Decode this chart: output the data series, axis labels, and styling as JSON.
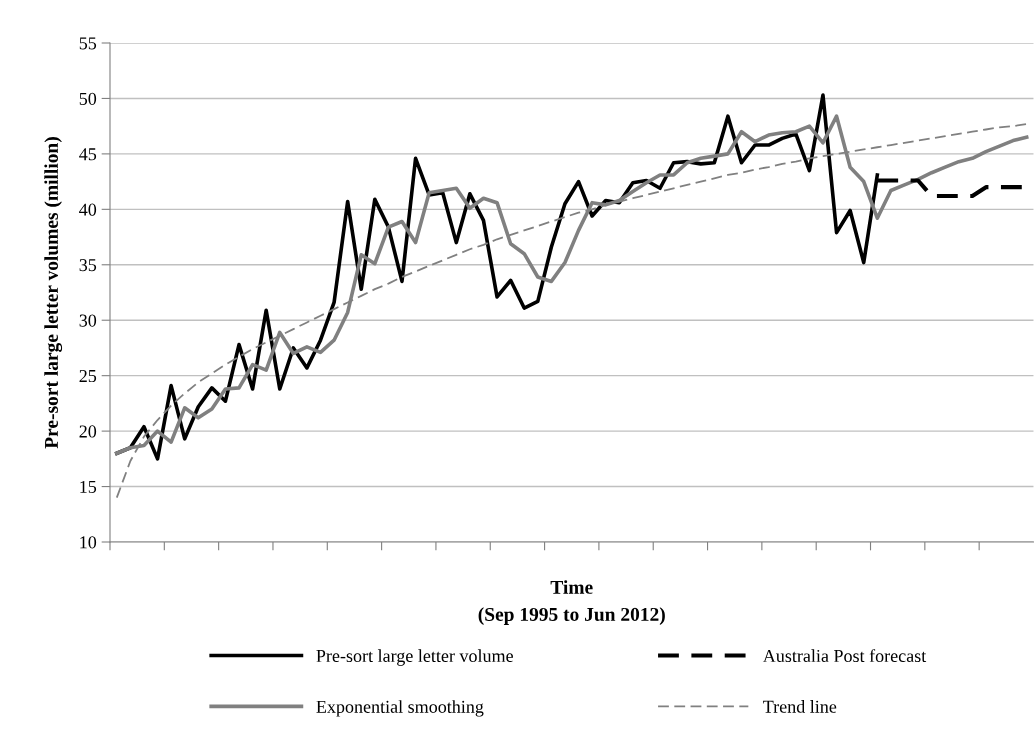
{
  "chart_data": {
    "type": "line",
    "xlabel": "Time\n(Sep 1995 to Jun 2012)",
    "ylabel": "Pre-sort large letter volumes (million)",
    "categories": [
      null,
      null,
      null,
      null,
      null,
      null,
      null,
      null,
      null,
      null,
      null,
      null,
      null,
      null,
      null,
      null,
      null,
      null,
      null,
      null,
      null,
      null,
      null,
      null,
      null,
      null,
      null,
      null,
      null,
      null,
      null,
      null,
      null,
      null,
      null,
      null,
      null,
      null,
      null,
      null,
      null,
      null,
      null,
      null,
      null,
      null,
      null,
      null,
      null,
      null,
      null,
      null,
      null,
      null,
      null,
      null,
      null,
      null,
      null,
      null,
      null,
      null,
      null,
      null,
      null,
      null,
      null,
      null
    ],
    "series": [
      {
        "name": "Pre-sort large letter volume",
        "color": "#000000",
        "line_style": "solid",
        "values": [
          18.0,
          18.5,
          20.4,
          17.5,
          24.1,
          19.3,
          22.2,
          23.9,
          22.7,
          27.8,
          23.8,
          30.9,
          23.8,
          27.5,
          25.7,
          28.2,
          31.6,
          40.7,
          32.8,
          40.9,
          38.4,
          33.5,
          44.6,
          41.3,
          41.5,
          37.0,
          41.4,
          39.0,
          32.1,
          33.6,
          31.1,
          31.7,
          36.6,
          40.5,
          42.5,
          39.4,
          40.8,
          40.6,
          42.4,
          42.6,
          41.9,
          44.2,
          44.3,
          44.1,
          44.2,
          48.4,
          44.2,
          45.8,
          45.8,
          46.4,
          46.8,
          43.5,
          50.3,
          37.9,
          39.9,
          35.2,
          43.1,
          null,
          null,
          null,
          null,
          null,
          null,
          null,
          null,
          null,
          null,
          null
        ]
      },
      {
        "name": "Exponential smoothing",
        "color": "#808080",
        "line_style": "solid",
        "values": [
          18.0,
          18.5,
          18.7,
          20.0,
          19.0,
          22.1,
          21.2,
          22.0,
          23.8,
          23.9,
          26.0,
          25.5,
          28.9,
          27.0,
          27.6,
          27.1,
          28.2,
          30.7,
          35.9,
          35.1,
          38.4,
          38.9,
          37.0,
          41.5,
          41.7,
          41.9,
          40.1,
          41.0,
          40.6,
          36.9,
          36.0,
          33.9,
          33.5,
          35.2,
          38.1,
          40.6,
          40.4,
          40.8,
          41.6,
          42.4,
          43.1,
          43.1,
          44.2,
          44.6,
          44.8,
          45.0,
          47.0,
          46.1,
          46.7,
          46.9,
          47.0,
          47.5,
          46.0,
          48.4,
          43.8,
          42.5,
          39.2,
          41.7,
          42.2,
          42.7,
          43.3,
          43.8,
          44.3,
          44.6,
          45.2,
          45.7,
          46.2,
          46.5
        ]
      },
      {
        "name": "Australia Post forecast",
        "color": "#000000",
        "line_style": "dashed",
        "values": [
          null,
          null,
          null,
          null,
          null,
          null,
          null,
          null,
          null,
          null,
          null,
          null,
          null,
          null,
          null,
          null,
          null,
          null,
          null,
          null,
          null,
          null,
          null,
          null,
          null,
          null,
          null,
          null,
          null,
          null,
          null,
          null,
          null,
          null,
          null,
          null,
          null,
          null,
          null,
          null,
          null,
          null,
          null,
          null,
          null,
          null,
          null,
          null,
          null,
          null,
          null,
          null,
          null,
          null,
          null,
          null,
          42.6,
          42.6,
          42.6,
          42.6,
          41.2,
          41.2,
          41.2,
          41.2,
          42.0,
          42.0,
          42.0,
          42.0
        ]
      },
      {
        "name": "Trend line",
        "color": "#808080",
        "line_style": "dashed",
        "values": [
          14.0,
          17.3,
          19.5,
          21.0,
          22.3,
          23.4,
          24.4,
          25.2,
          26.0,
          26.7,
          27.4,
          28.0,
          28.6,
          29.2,
          29.8,
          30.4,
          31.0,
          31.6,
          32.2,
          32.8,
          33.3,
          33.9,
          34.4,
          34.9,
          35.4,
          35.9,
          36.4,
          36.8,
          37.3,
          37.7,
          38.1,
          38.5,
          38.9,
          39.3,
          39.7,
          40.0,
          40.4,
          40.7,
          41.0,
          41.3,
          41.6,
          41.9,
          42.2,
          42.5,
          42.8,
          43.1,
          43.3,
          43.6,
          43.8,
          44.1,
          44.3,
          44.6,
          44.8,
          45.0,
          45.2,
          45.4,
          45.6,
          45.8,
          46.0,
          46.2,
          46.4,
          46.6,
          46.8,
          47.0,
          47.2,
          47.4,
          47.5,
          47.7
        ]
      }
    ],
    "ylim": [
      10,
      55
    ],
    "yticks": [
      10,
      15,
      20,
      25,
      30,
      35,
      40,
      45,
      50,
      55
    ],
    "grid": "y",
    "legend": "bottom"
  }
}
